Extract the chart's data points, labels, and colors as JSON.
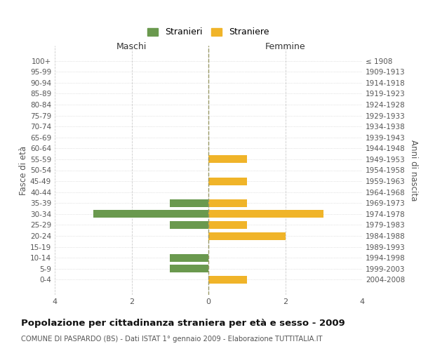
{
  "age_groups": [
    "100+",
    "95-99",
    "90-94",
    "85-89",
    "80-84",
    "75-79",
    "70-74",
    "65-69",
    "60-64",
    "55-59",
    "50-54",
    "45-49",
    "40-44",
    "35-39",
    "30-34",
    "25-29",
    "20-24",
    "15-19",
    "10-14",
    "5-9",
    "0-4"
  ],
  "birth_years": [
    "≤ 1908",
    "1909-1913",
    "1914-1918",
    "1919-1923",
    "1924-1928",
    "1929-1933",
    "1934-1938",
    "1939-1943",
    "1944-1948",
    "1949-1953",
    "1954-1958",
    "1959-1963",
    "1964-1968",
    "1969-1973",
    "1974-1978",
    "1979-1983",
    "1984-1988",
    "1989-1993",
    "1994-1998",
    "1999-2003",
    "2004-2008"
  ],
  "males": [
    0,
    0,
    0,
    0,
    0,
    0,
    0,
    0,
    0,
    0,
    0,
    0,
    0,
    1,
    3,
    1,
    0,
    0,
    1,
    1,
    0
  ],
  "females": [
    0,
    0,
    0,
    0,
    0,
    0,
    0,
    0,
    0,
    1,
    0,
    1,
    0,
    1,
    3,
    1,
    2,
    0,
    0,
    0,
    1
  ],
  "male_color": "#6a994e",
  "female_color": "#f0b429",
  "male_label": "Stranieri",
  "female_label": "Straniere",
  "xlabel_left": "Maschi",
  "xlabel_right": "Femmine",
  "ylabel_left": "Fasce di età",
  "ylabel_right": "Anni di nascita",
  "xlim": 4,
  "title": "Popolazione per cittadinanza straniera per età e sesso - 2009",
  "subtitle": "COMUNE DI PASPARDO (BS) - Dati ISTAT 1° gennaio 2009 - Elaborazione TUTTITALIA.IT",
  "background_color": "#ffffff",
  "grid_color": "#cccccc"
}
